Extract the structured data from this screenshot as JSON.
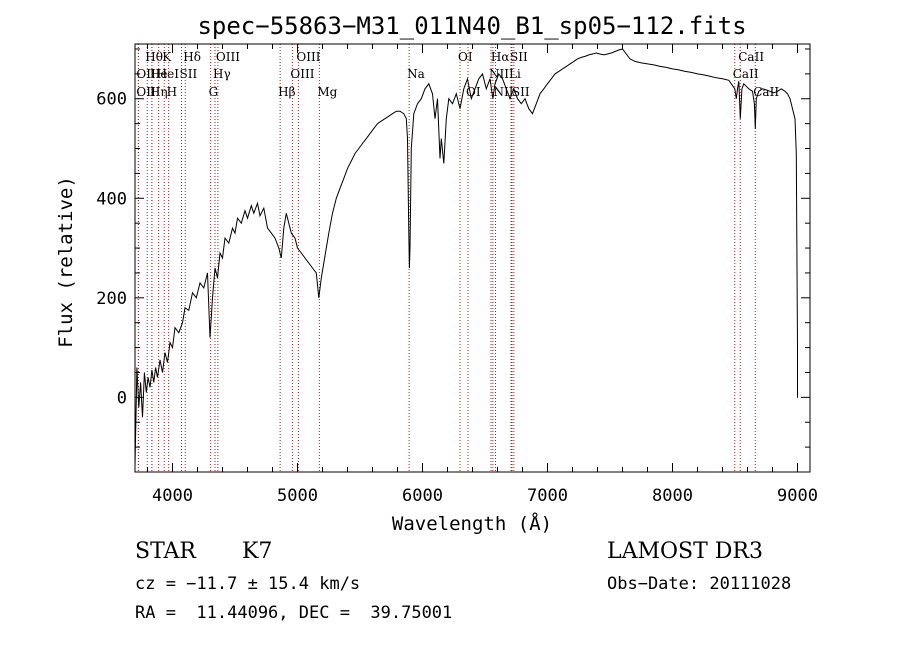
{
  "chart_data": {
    "type": "line",
    "title": "spec−55863−M31_011N40_B1_sp05−112.fits",
    "xlabel": "Wavelength (Å)",
    "ylabel": "Flux (relative)",
    "xlim": [
      3700,
      9100
    ],
    "ylim": [
      -150,
      710
    ],
    "xticks": [
      4000,
      5000,
      6000,
      7000,
      8000,
      9000
    ],
    "yticks": [
      0,
      200,
      400,
      600
    ],
    "series": [
      {
        "name": "flux",
        "points": [
          [
            3700,
            -140
          ],
          [
            3715,
            60
          ],
          [
            3730,
            -20
          ],
          [
            3745,
            30
          ],
          [
            3760,
            -40
          ],
          [
            3775,
            50
          ],
          [
            3790,
            10
          ],
          [
            3805,
            40
          ],
          [
            3820,
            20
          ],
          [
            3835,
            55
          ],
          [
            3850,
            30
          ],
          [
            3865,
            60
          ],
          [
            3880,
            40
          ],
          [
            3900,
            75
          ],
          [
            3920,
            50
          ],
          [
            3940,
            90
          ],
          [
            3960,
            70
          ],
          [
            3980,
            110
          ],
          [
            4000,
            100
          ],
          [
            4020,
            140
          ],
          [
            4050,
            130
          ],
          [
            4080,
            150
          ],
          [
            4100,
            180
          ],
          [
            4130,
            175
          ],
          [
            4160,
            210
          ],
          [
            4190,
            200
          ],
          [
            4220,
            230
          ],
          [
            4250,
            220
          ],
          [
            4280,
            250
          ],
          [
            4300,
            120
          ],
          [
            4320,
            200
          ],
          [
            4340,
            260
          ],
          [
            4360,
            240
          ],
          [
            4380,
            290
          ],
          [
            4400,
            280
          ],
          [
            4420,
            320
          ],
          [
            4450,
            310
          ],
          [
            4480,
            340
          ],
          [
            4500,
            330
          ],
          [
            4520,
            360
          ],
          [
            4550,
            350
          ],
          [
            4580,
            375
          ],
          [
            4600,
            360
          ],
          [
            4630,
            385
          ],
          [
            4650,
            370
          ],
          [
            4680,
            390
          ],
          [
            4700,
            365
          ],
          [
            4730,
            380
          ],
          [
            4760,
            340
          ],
          [
            4790,
            330
          ],
          [
            4820,
            320
          ],
          [
            4850,
            300
          ],
          [
            4870,
            280
          ],
          [
            4890,
            340
          ],
          [
            4910,
            370
          ],
          [
            4930,
            350
          ],
          [
            4950,
            330
          ],
          [
            4980,
            320
          ],
          [
            5000,
            300
          ],
          [
            5030,
            290
          ],
          [
            5060,
            280
          ],
          [
            5090,
            270
          ],
          [
            5120,
            260
          ],
          [
            5150,
            250
          ],
          [
            5170,
            200
          ],
          [
            5190,
            240
          ],
          [
            5210,
            270
          ],
          [
            5230,
            300
          ],
          [
            5250,
            330
          ],
          [
            5280,
            370
          ],
          [
            5310,
            400
          ],
          [
            5340,
            420
          ],
          [
            5370,
            440
          ],
          [
            5400,
            460
          ],
          [
            5430,
            475
          ],
          [
            5460,
            490
          ],
          [
            5490,
            500
          ],
          [
            5520,
            510
          ],
          [
            5550,
            520
          ],
          [
            5580,
            530
          ],
          [
            5610,
            540
          ],
          [
            5640,
            550
          ],
          [
            5670,
            555
          ],
          [
            5700,
            560
          ],
          [
            5730,
            565
          ],
          [
            5760,
            570
          ],
          [
            5790,
            575
          ],
          [
            5820,
            575
          ],
          [
            5850,
            570
          ],
          [
            5870,
            560
          ],
          [
            5880,
            520
          ],
          [
            5890,
            330
          ],
          [
            5895,
            260
          ],
          [
            5900,
            300
          ],
          [
            5910,
            500
          ],
          [
            5930,
            570
          ],
          [
            5960,
            590
          ],
          [
            5990,
            600
          ],
          [
            6020,
            620
          ],
          [
            6050,
            630
          ],
          [
            6080,
            610
          ],
          [
            6100,
            560
          ],
          [
            6120,
            600
          ],
          [
            6140,
            480
          ],
          [
            6150,
            520
          ],
          [
            6170,
            470
          ],
          [
            6190,
            560
          ],
          [
            6210,
            600
          ],
          [
            6240,
            590
          ],
          [
            6270,
            610
          ],
          [
            6300,
            580
          ],
          [
            6330,
            620
          ],
          [
            6360,
            640
          ],
          [
            6390,
            600
          ],
          [
            6420,
            620
          ],
          [
            6450,
            640
          ],
          [
            6480,
            650
          ],
          [
            6510,
            620
          ],
          [
            6540,
            640
          ],
          [
            6563,
            600
          ],
          [
            6580,
            630
          ],
          [
            6610,
            650
          ],
          [
            6640,
            640
          ],
          [
            6670,
            620
          ],
          [
            6700,
            600
          ],
          [
            6730,
            620
          ],
          [
            6760,
            600
          ],
          [
            6790,
            590
          ],
          [
            6820,
            600
          ],
          [
            6850,
            580
          ],
          [
            6880,
            570
          ],
          [
            6910,
            590
          ],
          [
            6940,
            610
          ],
          [
            6970,
            620
          ],
          [
            7000,
            630
          ],
          [
            7030,
            640
          ],
          [
            7060,
            650
          ],
          [
            7090,
            655
          ],
          [
            7120,
            660
          ],
          [
            7150,
            665
          ],
          [
            7180,
            670
          ],
          [
            7210,
            675
          ],
          [
            7240,
            680
          ],
          [
            7270,
            683
          ],
          [
            7300,
            685
          ],
          [
            7330,
            688
          ],
          [
            7360,
            690
          ],
          [
            7390,
            692
          ],
          [
            7420,
            690
          ],
          [
            7450,
            688
          ],
          [
            7480,
            690
          ],
          [
            7510,
            692
          ],
          [
            7540,
            695
          ],
          [
            7570,
            698
          ],
          [
            7600,
            700
          ],
          [
            7630,
            690
          ],
          [
            7660,
            680
          ],
          [
            7700,
            675
          ],
          [
            7750,
            672
          ],
          [
            7800,
            670
          ],
          [
            7850,
            668
          ],
          [
            7900,
            665
          ],
          [
            7950,
            663
          ],
          [
            8000,
            660
          ],
          [
            8050,
            658
          ],
          [
            8100,
            655
          ],
          [
            8150,
            653
          ],
          [
            8200,
            650
          ],
          [
            8250,
            648
          ],
          [
            8300,
            645
          ],
          [
            8350,
            642
          ],
          [
            8400,
            640
          ],
          [
            8450,
            637
          ],
          [
            8498,
            620
          ],
          [
            8510,
            600
          ],
          [
            8520,
            620
          ],
          [
            8530,
            635
          ],
          [
            8542,
            560
          ],
          [
            8555,
            620
          ],
          [
            8570,
            630
          ],
          [
            8590,
            625
          ],
          [
            8610,
            620
          ],
          [
            8640,
            615
          ],
          [
            8655,
            590
          ],
          [
            8662,
            540
          ],
          [
            8670,
            600
          ],
          [
            8690,
            615
          ],
          [
            8720,
            620
          ],
          [
            8750,
            618
          ],
          [
            8780,
            615
          ],
          [
            8810,
            612
          ],
          [
            8840,
            615
          ],
          [
            8870,
            620
          ],
          [
            8900,
            615
          ],
          [
            8920,
            610
          ],
          [
            8940,
            600
          ],
          [
            8960,
            580
          ],
          [
            8980,
            560
          ],
          [
            8990,
            490
          ],
          [
            9000,
            100
          ],
          [
            9000,
            0
          ],
          [
            9005,
            0
          ]
        ]
      }
    ],
    "line_markers": [
      {
        "label": "Hθ",
        "x": 3798,
        "row": 1
      },
      {
        "label": "OII",
        "x": 3727,
        "row": 2
      },
      {
        "label": "OIII",
        "x": 3727,
        "row": 3
      },
      {
        "label": "He",
        "x": 3835,
        "row": 2
      },
      {
        "label": "Hη",
        "x": 3835,
        "row": 3
      },
      {
        "label": "K",
        "x": 3934,
        "row": 1
      },
      {
        "label": "HeI",
        "x": 3889,
        "row": 2
      },
      {
        "label": "SII",
        "x": 4072,
        "row": 2
      },
      {
        "label": "H",
        "x": 3969,
        "row": 3
      },
      {
        "label": "Hδ",
        "x": 4102,
        "row": 1
      },
      {
        "label": "OIII",
        "x": 4363,
        "row": 1
      },
      {
        "label": "Hγ",
        "x": 4340,
        "row": 2
      },
      {
        "label": "G",
        "x": 4305,
        "row": 3
      },
      {
        "label": "Hβ",
        "x": 4861,
        "row": 3
      },
      {
        "label": "OIII",
        "x": 5007,
        "row": 1
      },
      {
        "label": "OIII",
        "x": 4959,
        "row": 2
      },
      {
        "label": "Mg",
        "x": 5175,
        "row": 3
      },
      {
        "label": "Na",
        "x": 5893,
        "row": 2
      },
      {
        "label": "OI",
        "x": 6300,
        "row": 1
      },
      {
        "label": "OI",
        "x": 6364,
        "row": 3
      },
      {
        "label": "Hα",
        "x": 6563,
        "row": 1
      },
      {
        "label": "NII",
        "x": 6548,
        "row": 2
      },
      {
        "label": "NII",
        "x": 6584,
        "row": 3
      },
      {
        "label": "SII",
        "x": 6716,
        "row": 1
      },
      {
        "label": "Li",
        "x": 6708,
        "row": 2
      },
      {
        "label": "SII",
        "x": 6731,
        "row": 3
      },
      {
        "label": "CaII",
        "x": 8542,
        "row": 1
      },
      {
        "label": "CaII",
        "x": 8498,
        "row": 2
      },
      {
        "label": "CaII",
        "x": 8662,
        "row": 3
      }
    ]
  },
  "footer": {
    "class_label": "STAR",
    "subclass": "K7",
    "survey": "LAMOST DR3",
    "cz": "cz = −11.7 ± 15.4 km/s",
    "obs_date": "Obs−Date: 20111028",
    "coords": "RA =  11.44096, DEC =  39.75001"
  }
}
